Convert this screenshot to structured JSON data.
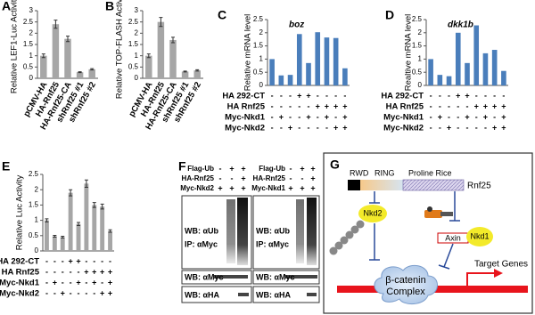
{
  "chart_data": [
    {
      "type": "bar",
      "panel": "A",
      "ylabel": "Relative LEF1-Luc Activity",
      "categories": [
        "pCMV-HA",
        "HA-Rnf25",
        "HA-Rnf25-CA",
        "shRnf25 #1",
        "shRnf25 #2"
      ],
      "values": [
        1.0,
        2.4,
        1.75,
        0.27,
        0.4
      ],
      "errors": [
        0.08,
        0.18,
        0.12,
        0.02,
        0.03
      ],
      "color": "#a6a6a6",
      "ylim": [
        0,
        3
      ],
      "yticks": [
        0,
        0.5,
        1,
        1.5,
        2,
        2.5,
        3
      ]
    },
    {
      "type": "bar",
      "panel": "B",
      "ylabel": "Relative TOP-FLASH Activity",
      "categories": [
        "pCMV-HA",
        "HA-Rnf25",
        "HA-Rnf25-CA",
        "shRnf25 #1",
        "shRnf25 #2"
      ],
      "values": [
        1.0,
        2.5,
        1.7,
        0.3,
        0.35
      ],
      "errors": [
        0.08,
        0.2,
        0.12,
        0.02,
        0.03
      ],
      "color": "#a6a6a6",
      "ylim": [
        0,
        3
      ],
      "yticks": [
        0,
        0.5,
        1,
        1.5,
        2,
        2.5,
        3
      ]
    },
    {
      "type": "bar",
      "panel": "C",
      "title": "boz",
      "ylabel": "Relative mRNA level",
      "values": [
        1.0,
        0.38,
        0.4,
        1.95,
        0.85,
        2.02,
        1.82,
        1.8,
        0.65
      ],
      "color": "#4a7ebb",
      "ylim": [
        0,
        2.5
      ],
      "yticks": [
        0,
        0.5,
        1,
        1.5,
        2,
        2.5
      ],
      "conditions": [
        {
          "name": "HA 292-CT",
          "signs": [
            "-",
            "-",
            "-",
            "+",
            "+",
            "-",
            "-",
            "-",
            "-"
          ]
        },
        {
          "name": "HA Rnf25",
          "signs": [
            "-",
            "-",
            "-",
            "-",
            "-",
            "+",
            "+",
            "+",
            "+"
          ]
        },
        {
          "name": "Myc-Nkd1",
          "signs": [
            "-",
            "+",
            "-",
            "-",
            "+",
            "-",
            "+",
            "-",
            "+"
          ]
        },
        {
          "name": "Myc-Nkd2",
          "signs": [
            "-",
            "-",
            "+",
            "-",
            "-",
            "-",
            "-",
            "+",
            "+"
          ]
        }
      ]
    },
    {
      "type": "bar",
      "panel": "D",
      "title": "dkk1b",
      "ylabel": "Realtive mRNA level",
      "values": [
        1.0,
        0.4,
        0.35,
        2.0,
        0.85,
        2.28,
        1.22,
        1.35,
        0.55
      ],
      "color": "#4a7ebb",
      "ylim": [
        0,
        2.5
      ],
      "yticks": [
        0,
        0.5,
        1,
        1.5,
        2,
        2.5
      ],
      "conditions": [
        {
          "name": "HA 292-CT",
          "signs": [
            "-",
            "-",
            "-",
            "+",
            "+",
            "-",
            "-",
            "-",
            "-"
          ]
        },
        {
          "name": "HA Rnf25",
          "signs": [
            "-",
            "-",
            "-",
            "-",
            "-",
            "+",
            "+",
            "+",
            "+"
          ]
        },
        {
          "name": "Myc-Nkd1",
          "signs": [
            "-",
            "+",
            "-",
            "-",
            "+",
            "-",
            "+",
            "-",
            "+"
          ]
        },
        {
          "name": "Myc-Nkd2",
          "signs": [
            "-",
            "-",
            "+",
            "-",
            "-",
            "-",
            "-",
            "+",
            "+"
          ]
        }
      ]
    },
    {
      "type": "bar",
      "panel": "E",
      "ylabel": "Relative Luc Activity",
      "values": [
        1.0,
        0.48,
        0.45,
        1.9,
        0.88,
        2.2,
        1.5,
        1.45,
        0.65
      ],
      "errors": [
        0.05,
        0.03,
        0.03,
        0.1,
        0.05,
        0.12,
        0.08,
        0.08,
        0.04
      ],
      "color": "#a6a6a6",
      "ylim": [
        0,
        2.5
      ],
      "yticks": [
        0,
        0.5,
        1,
        1.5,
        2,
        2.5
      ],
      "conditions": [
        {
          "name": "HA 292-CT",
          "signs": [
            "-",
            "-",
            "-",
            "+",
            "+",
            "-",
            "-",
            "-",
            "-"
          ]
        },
        {
          "name": "HA Rnf25",
          "signs": [
            "-",
            "-",
            "-",
            "-",
            "-",
            "+",
            "+",
            "+",
            "+"
          ]
        },
        {
          "name": "Myc-Nkd1",
          "signs": [
            "-",
            "+",
            "-",
            "-",
            "+",
            "-",
            "+",
            "-",
            "+"
          ]
        },
        {
          "name": "Myc-Nkd2",
          "signs": [
            "-",
            "-",
            "+",
            "-",
            "-",
            "-",
            "-",
            "+",
            "+"
          ]
        }
      ]
    }
  ],
  "blots": {
    "panel": "F",
    "panels": [
      {
        "rows": [
          {
            "name": "Flag-Ub",
            "signs": [
              "-",
              "+",
              "+"
            ]
          },
          {
            "name": "HA-Rnf25",
            "signs": [
              "-",
              "-",
              "+"
            ]
          },
          {
            "name": "Myc-Nkd2",
            "signs": [
              "+",
              "+",
              "+"
            ]
          }
        ],
        "wb_ub": "WB: αUb",
        "ip": "IP: αMyc",
        "wb_myc": "WB: αMyc",
        "wb_ha": "WB: αHA"
      },
      {
        "rows": [
          {
            "name": "Flag-Ub",
            "signs": [
              "-",
              "+",
              "+"
            ]
          },
          {
            "name": "HA-Rnf25",
            "signs": [
              "-",
              "-",
              "+"
            ]
          },
          {
            "name": "Myc-Nkd1",
            "signs": [
              "+",
              "+",
              "+"
            ]
          }
        ],
        "wb_ub": "WB: αUb",
        "ip": "IP: αMyc",
        "wb_myc": "WB: αMyc",
        "wb_ha": "WB: αHA"
      }
    ]
  },
  "diagram": {
    "panel": "G",
    "domains": [
      "RWD",
      "RING",
      "Proline Rice"
    ],
    "protein": "Rnf25",
    "nkd2": "Nkd2",
    "axin": "Axin",
    "nkd1": "Nkd1",
    "complex": [
      "β-catenin",
      "Complex"
    ],
    "target": "Target Genes"
  }
}
